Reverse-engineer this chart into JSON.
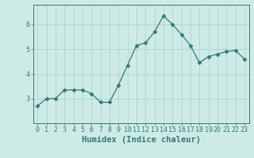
{
  "x": [
    0,
    1,
    2,
    3,
    4,
    5,
    6,
    7,
    8,
    9,
    10,
    11,
    12,
    13,
    14,
    15,
    16,
    17,
    18,
    19,
    20,
    21,
    22,
    23
  ],
  "y": [
    2.7,
    3.0,
    3.0,
    3.35,
    3.35,
    3.35,
    3.2,
    2.85,
    2.85,
    3.55,
    4.35,
    5.15,
    5.25,
    5.7,
    6.35,
    6.0,
    5.6,
    5.15,
    4.45,
    4.7,
    4.8,
    4.9,
    4.95,
    4.6
  ],
  "line_color": "#2e7d6e",
  "marker": "D",
  "marker_size": 2.5,
  "bg_color": "#ceeae7",
  "grid_color": "#aed4d0",
  "axis_color": "#2e7d6e",
  "xlabel": "Humidex (Indice chaleur)",
  "xlim": [
    -0.5,
    23.5
  ],
  "ylim": [
    2.0,
    6.8
  ],
  "yticks": [
    3,
    4,
    5,
    6
  ],
  "xticks": [
    0,
    1,
    2,
    3,
    4,
    5,
    6,
    7,
    8,
    9,
    10,
    11,
    12,
    13,
    14,
    15,
    16,
    17,
    18,
    19,
    20,
    21,
    22,
    23
  ],
  "tick_font_size": 6.0,
  "xlabel_font_size": 7.5
}
